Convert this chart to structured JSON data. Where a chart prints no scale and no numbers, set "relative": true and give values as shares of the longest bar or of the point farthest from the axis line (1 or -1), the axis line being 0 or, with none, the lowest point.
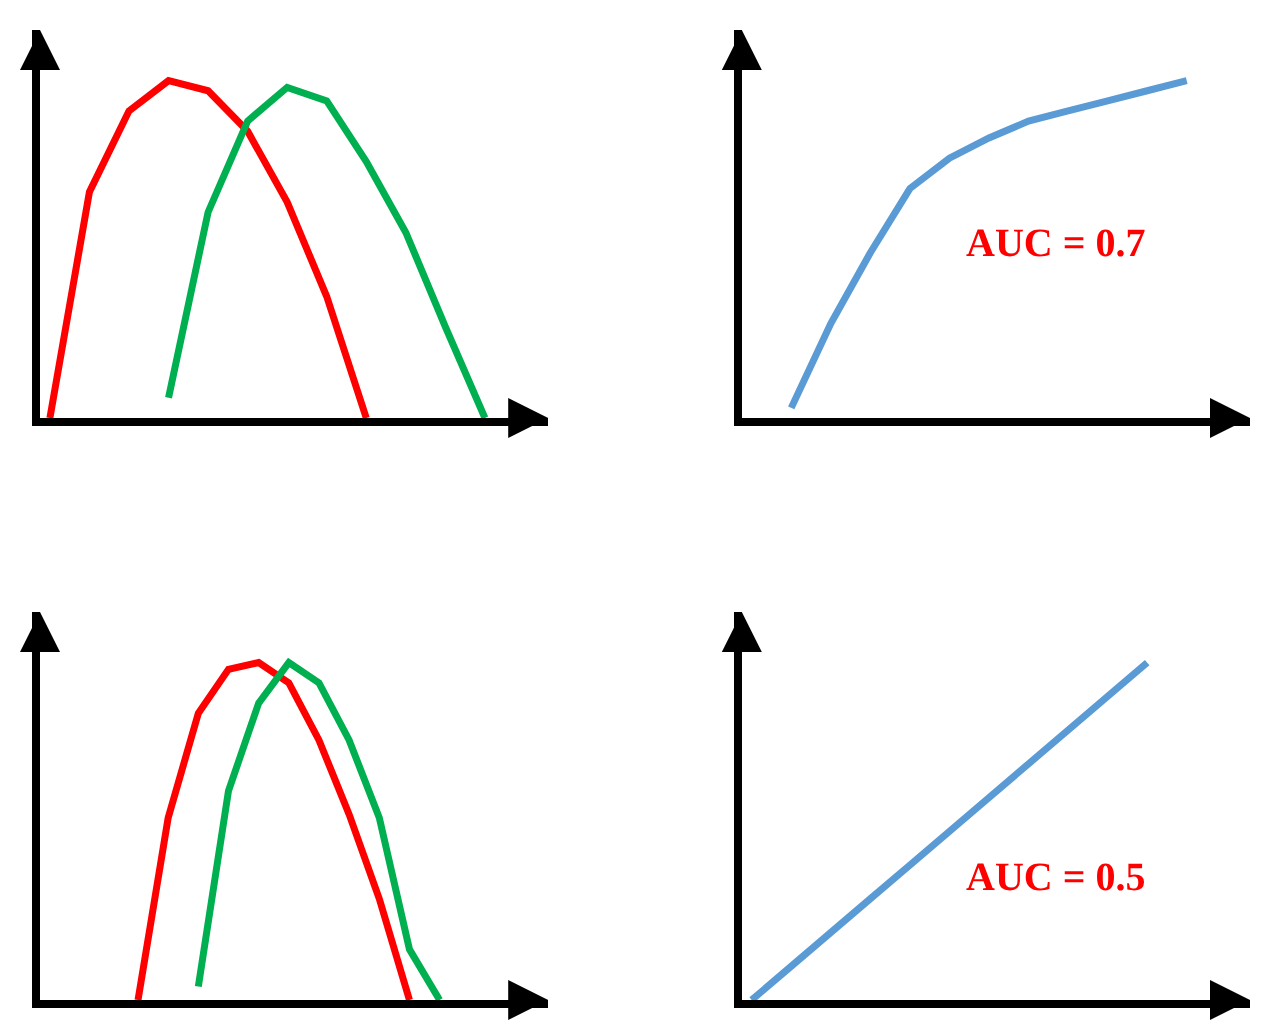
{
  "chart_data": [
    {
      "type": "line",
      "relative": true,
      "categories": [
        null,
        null,
        null,
        null,
        null,
        null,
        null,
        null,
        null,
        null,
        null,
        null,
        null
      ],
      "series": [
        {
          "color": "#ff0000",
          "values": [
            0,
            0.67,
            0.91,
            1.0,
            0.97,
            0.85,
            0.64,
            0.36,
            0,
            null,
            null,
            null,
            null
          ]
        },
        {
          "color": "#00b050",
          "values": [
            null,
            null,
            null,
            0.06,
            0.61,
            0.88,
            0.98,
            0.94,
            0.76,
            0.55,
            0.27,
            0,
            null
          ]
        }
      ]
    },
    {
      "type": "line",
      "relative": true,
      "categories": [
        null,
        null,
        null,
        null,
        null,
        null,
        null,
        null,
        null,
        null,
        null,
        null,
        null
      ],
      "series": [
        {
          "color": "#5b9bd5",
          "values": [
            null,
            0.03,
            0.28,
            0.49,
            0.68,
            0.77,
            0.83,
            0.88,
            0.91,
            0.94,
            0.97,
            1.0,
            null
          ]
        }
      ],
      "annotations": [
        "AUC = 0.7"
      ]
    },
    {
      "type": "line",
      "relative": true,
      "categories": [
        null,
        null,
        null,
        null,
        null,
        null,
        null,
        null,
        null,
        null,
        null,
        null,
        null,
        null,
        null,
        null,
        null
      ],
      "series": [
        {
          "color": "#ff0000",
          "values": [
            null,
            null,
            null,
            0,
            0.54,
            0.85,
            0.98,
            1.0,
            0.94,
            0.77,
            0.55,
            0.3,
            0,
            null,
            null,
            null,
            null
          ]
        },
        {
          "color": "#00b050",
          "values": [
            null,
            null,
            null,
            null,
            null,
            0.04,
            0.62,
            0.88,
            1.0,
            0.94,
            0.77,
            0.54,
            0.15,
            0,
            null,
            null,
            null
          ]
        }
      ]
    },
    {
      "type": "line",
      "relative": true,
      "categories": [
        null,
        null,
        null,
        null,
        null,
        null,
        null,
        null,
        null,
        null,
        null,
        null,
        null
      ],
      "series": [
        {
          "color": "#5b9bd5",
          "values": [
            0,
            0.1,
            0.2,
            0.3,
            0.4,
            0.5,
            0.6,
            0.7,
            0.8,
            0.9,
            1.0,
            null,
            null
          ]
        }
      ],
      "annotations": [
        "AUC = 0.5"
      ]
    }
  ]
}
